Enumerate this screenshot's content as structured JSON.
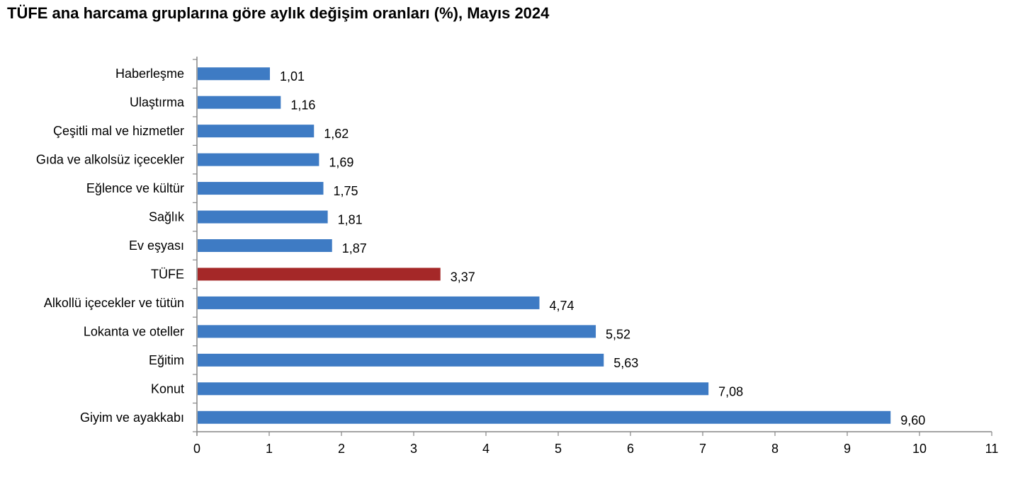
{
  "chart_data": {
    "type": "bar",
    "orientation": "horizontal",
    "title": "TÜFE ana harcama gruplarına göre aylık değişim oranları (%), Mayıs 2024",
    "xlabel": "",
    "ylabel": "",
    "categories": [
      "Haberleşme",
      "Ulaştırma",
      "Çeşitli mal ve hizmetler",
      "Gıda ve alkolsüz içecekler",
      "Eğlence ve kültür",
      "Sağlık",
      "Ev eşyası",
      "TÜFE",
      "Alkollü içecekler ve tütün",
      "Lokanta ve oteller",
      "Eğitim",
      "Konut",
      "Giyim ve ayakkabı"
    ],
    "values": [
      1.01,
      1.16,
      1.62,
      1.69,
      1.75,
      1.81,
      1.87,
      3.37,
      4.74,
      5.52,
      5.63,
      7.08,
      9.6
    ],
    "value_labels": [
      "1,01",
      "1,16",
      "1,62",
      "1,69",
      "1,75",
      "1,81",
      "1,87",
      "3,37",
      "4,74",
      "5,52",
      "5,63",
      "7,08",
      "9,60"
    ],
    "bar_colors": [
      "#3E7BC4",
      "#3E7BC4",
      "#3E7BC4",
      "#3E7BC4",
      "#3E7BC4",
      "#3E7BC4",
      "#3E7BC4",
      "#A52828",
      "#3E7BC4",
      "#3E7BC4",
      "#3E7BC4",
      "#3E7BC4",
      "#3E7BC4"
    ],
    "xlim": [
      0,
      11
    ],
    "xticks": [
      "0",
      "1",
      "2",
      "3",
      "4",
      "5",
      "6",
      "7",
      "8",
      "9",
      "10",
      "11"
    ],
    "grid": false,
    "legend": "none"
  }
}
